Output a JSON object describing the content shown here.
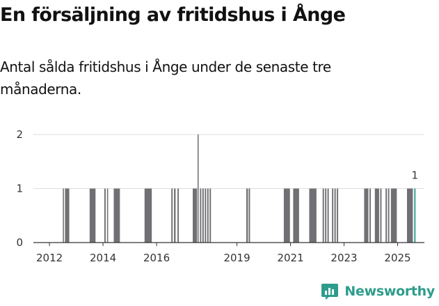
{
  "title": "En försäljning av fritidshus i Ånge",
  "subtitle": "Antal sålda fritidshus i Ånge under de senaste tre månaderna.",
  "brand": {
    "name": "Newsworthy",
    "logo_icon": "newsworthy-logo-icon",
    "color": "#2e9c8c"
  },
  "chart_data": {
    "type": "bar",
    "title": "En försäljning av fritidshus i Ånge",
    "subtitle": "Antal sålda fritidshus i Ånge under de senaste tre månaderna.",
    "xlabel": "",
    "ylabel": "",
    "ylim": [
      0,
      2
    ],
    "y_ticks": [
      0,
      1,
      2
    ],
    "x_tick_labels": [
      "2012",
      "2014",
      "2016",
      "2019",
      "2021",
      "2023",
      "2025"
    ],
    "x_tick_positions": [
      2012.0,
      2014.0,
      2016.0,
      2019.0,
      2021.0,
      2023.0,
      2025.0
    ],
    "x_domain": [
      2011.4,
      2026.0
    ],
    "grid": true,
    "bar_color": "#707074",
    "highlight_color": "#2e9c8c",
    "highlight_label": "1",
    "bars": [
      {
        "x": 2012.5,
        "w": 0.04,
        "value": 1
      },
      {
        "x": 2012.58,
        "w": 0.16,
        "value": 1
      },
      {
        "x": 2013.5,
        "w": 0.22,
        "value": 1
      },
      {
        "x": 2014.05,
        "w": 0.05,
        "value": 1
      },
      {
        "x": 2014.15,
        "w": 0.04,
        "value": 1
      },
      {
        "x": 2014.4,
        "w": 0.23,
        "value": 1
      },
      {
        "x": 2015.55,
        "w": 0.27,
        "value": 1
      },
      {
        "x": 2016.55,
        "w": 0.05,
        "value": 1
      },
      {
        "x": 2016.65,
        "w": 0.06,
        "value": 1
      },
      {
        "x": 2016.78,
        "w": 0.05,
        "value": 1
      },
      {
        "x": 2017.35,
        "w": 0.16,
        "value": 1
      },
      {
        "x": 2017.53,
        "w": 0.04,
        "value": 2
      },
      {
        "x": 2017.62,
        "w": 0.05,
        "value": 1
      },
      {
        "x": 2017.71,
        "w": 0.05,
        "value": 1
      },
      {
        "x": 2017.8,
        "w": 0.05,
        "value": 1
      },
      {
        "x": 2017.89,
        "w": 0.05,
        "value": 1
      },
      {
        "x": 2017.98,
        "w": 0.05,
        "value": 1
      },
      {
        "x": 2019.35,
        "w": 0.06,
        "value": 1
      },
      {
        "x": 2019.44,
        "w": 0.05,
        "value": 1
      },
      {
        "x": 2020.75,
        "w": 0.23,
        "value": 1
      },
      {
        "x": 2021.1,
        "w": 0.22,
        "value": 1
      },
      {
        "x": 2021.7,
        "w": 0.27,
        "value": 1
      },
      {
        "x": 2022.2,
        "w": 0.05,
        "value": 1
      },
      {
        "x": 2022.29,
        "w": 0.05,
        "value": 1
      },
      {
        "x": 2022.38,
        "w": 0.05,
        "value": 1
      },
      {
        "x": 2022.55,
        "w": 0.05,
        "value": 1
      },
      {
        "x": 2022.64,
        "w": 0.05,
        "value": 1
      },
      {
        "x": 2022.73,
        "w": 0.05,
        "value": 1
      },
      {
        "x": 2023.75,
        "w": 0.16,
        "value": 1
      },
      {
        "x": 2023.95,
        "w": 0.05,
        "value": 1
      },
      {
        "x": 2024.15,
        "w": 0.16,
        "value": 1
      },
      {
        "x": 2024.35,
        "w": 0.05,
        "value": 1
      },
      {
        "x": 2024.55,
        "w": 0.05,
        "value": 1
      },
      {
        "x": 2024.64,
        "w": 0.05,
        "value": 1
      },
      {
        "x": 2024.75,
        "w": 0.22,
        "value": 1
      },
      {
        "x": 2025.35,
        "w": 0.22,
        "value": 1
      },
      {
        "x": 2025.62,
        "w": 0.05,
        "value": 1,
        "highlight": true
      }
    ]
  }
}
